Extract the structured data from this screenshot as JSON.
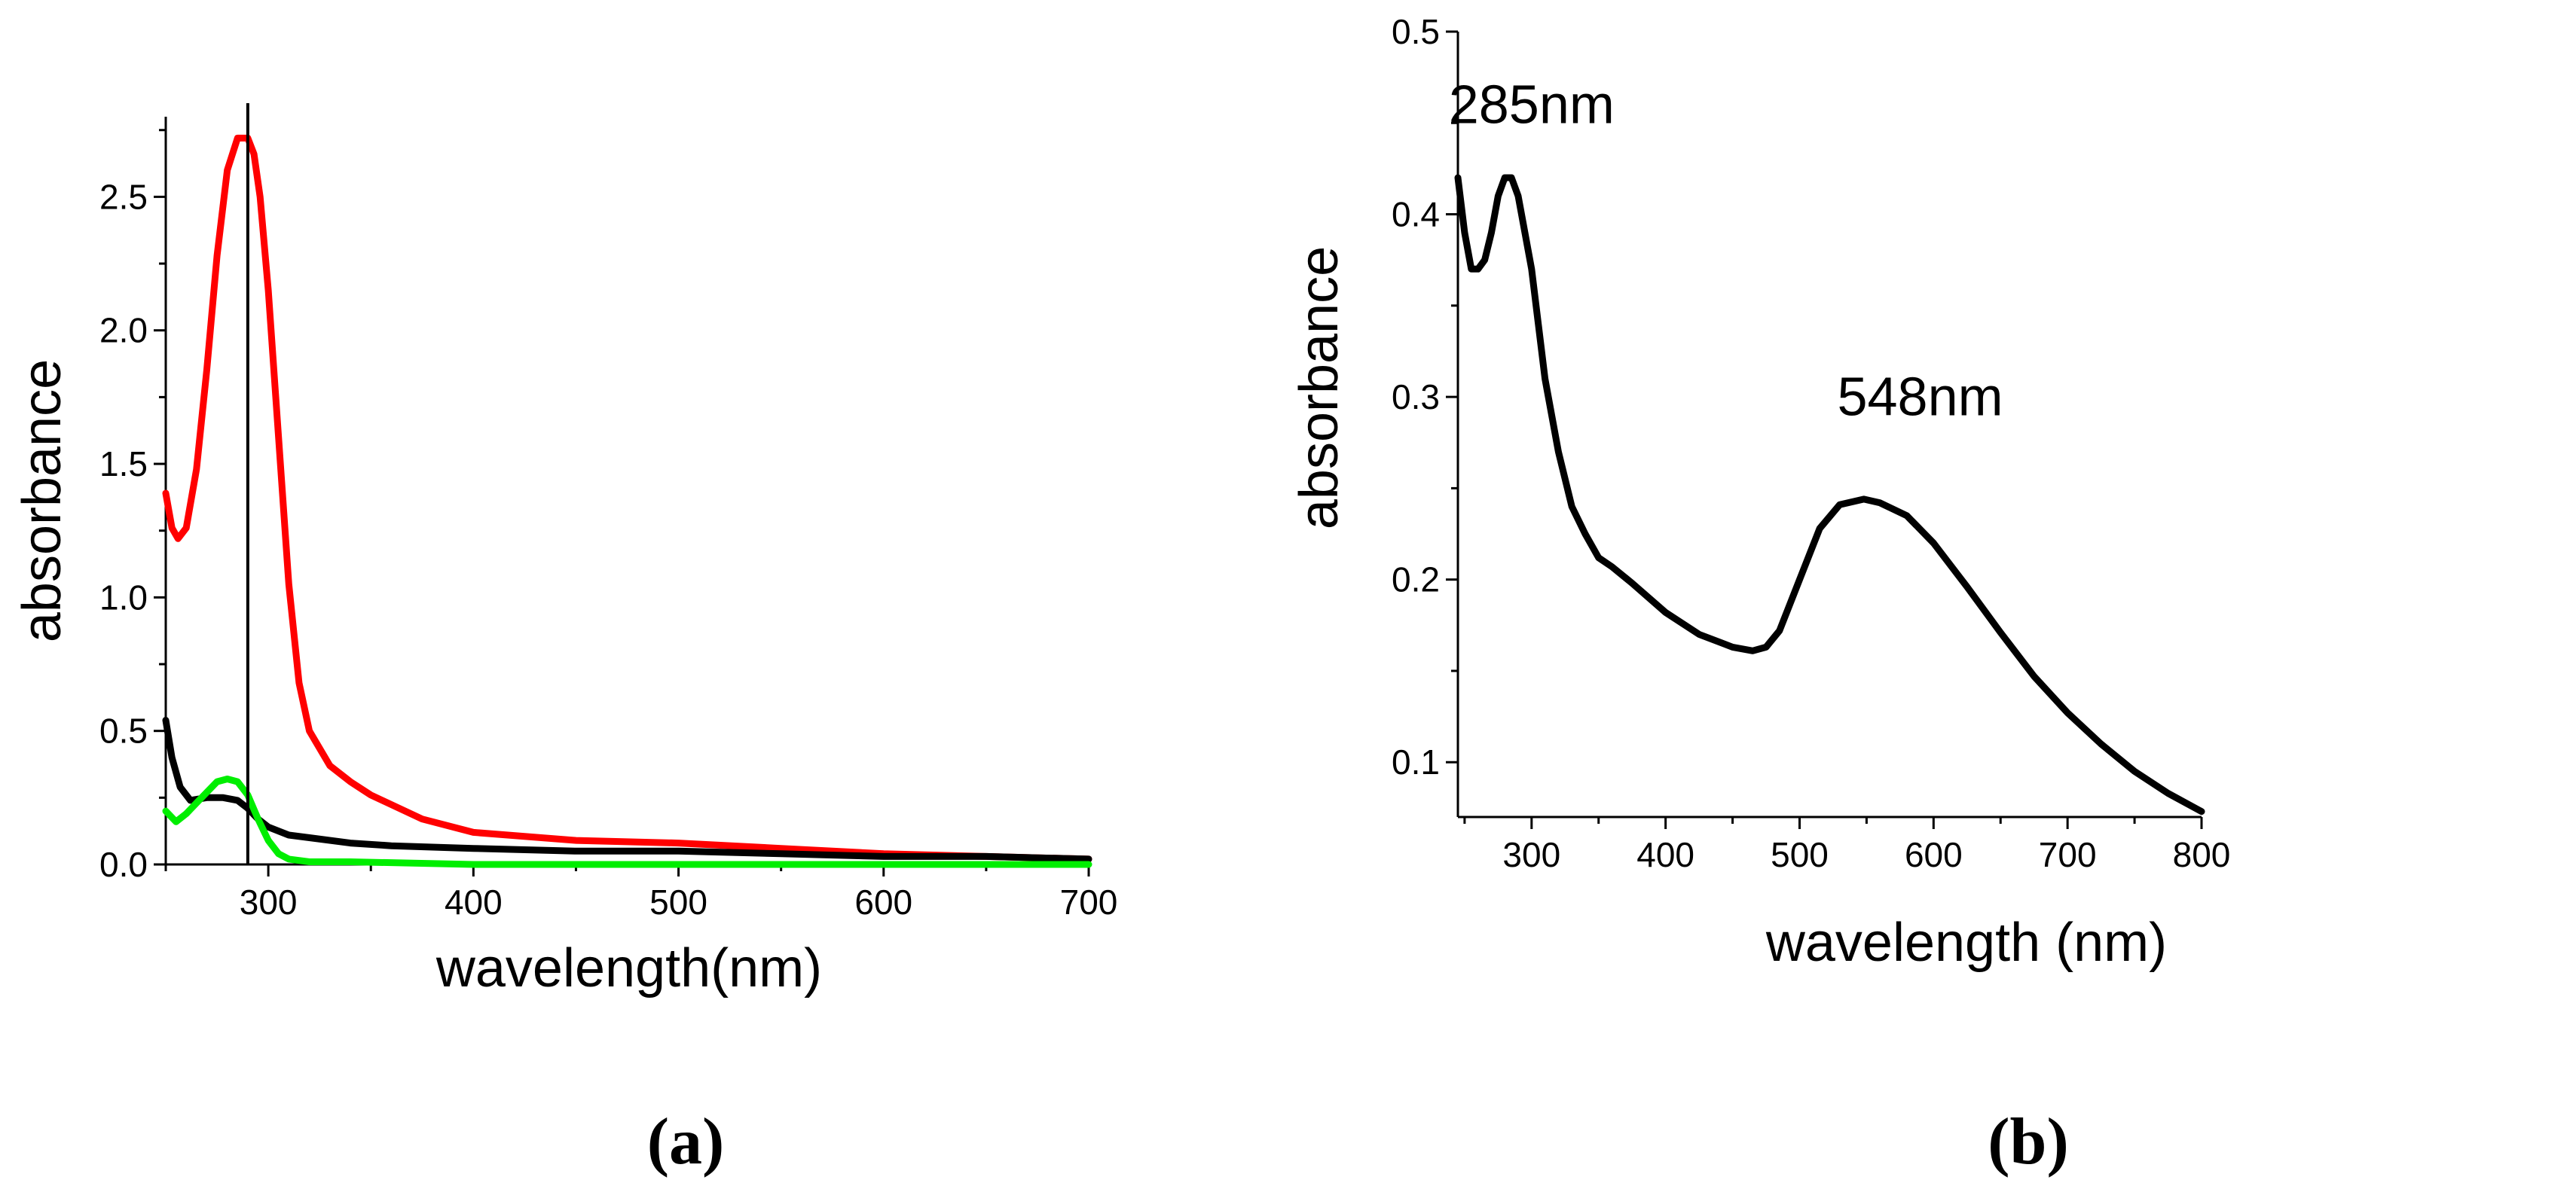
{
  "chart_data": [
    {
      "id": "a",
      "type": "line",
      "panel_label": "(a)",
      "title": "",
      "xlabel": "wavelength(nm)",
      "ylabel": "absorbance",
      "xlim": [
        250,
        700
      ],
      "ylim": [
        0,
        2.8
      ],
      "xticks": [
        300,
        400,
        500,
        600,
        700
      ],
      "xtick_labels": [
        "300",
        "400",
        "500",
        "600",
        "700"
      ],
      "yticks": [
        0.0,
        0.5,
        1.0,
        1.5,
        2.0,
        2.5
      ],
      "ytick_labels": [
        "0.0",
        "0.5",
        "1.0",
        "1.5",
        "2.0",
        "2.5"
      ],
      "vline_x": 290,
      "series": [
        {
          "name": "red",
          "color": "#ff0000",
          "x": [
            250,
            253,
            256,
            260,
            265,
            270,
            275,
            280,
            285,
            290,
            293,
            296,
            300,
            305,
            310,
            315,
            320,
            330,
            340,
            350,
            375,
            400,
            450,
            500,
            550,
            600,
            650,
            700
          ],
          "values": [
            1.39,
            1.26,
            1.22,
            1.26,
            1.48,
            1.85,
            2.28,
            2.6,
            2.72,
            2.72,
            2.66,
            2.5,
            2.15,
            1.6,
            1.05,
            0.68,
            0.5,
            0.37,
            0.31,
            0.26,
            0.17,
            0.12,
            0.09,
            0.08,
            0.06,
            0.04,
            0.03,
            0.02
          ]
        },
        {
          "name": "black",
          "color": "#000000",
          "x": [
            250,
            253,
            257,
            262,
            270,
            278,
            285,
            290,
            295,
            300,
            310,
            320,
            340,
            360,
            400,
            450,
            500,
            550,
            600,
            650,
            700
          ],
          "values": [
            0.54,
            0.4,
            0.29,
            0.24,
            0.25,
            0.25,
            0.24,
            0.21,
            0.17,
            0.14,
            0.11,
            0.1,
            0.08,
            0.07,
            0.06,
            0.05,
            0.05,
            0.04,
            0.03,
            0.03,
            0.02
          ]
        },
        {
          "name": "green",
          "color": "#00ee00",
          "x": [
            250,
            255,
            260,
            265,
            270,
            275,
            280,
            285,
            290,
            295,
            300,
            305,
            310,
            320,
            340,
            400,
            500,
            600,
            700
          ],
          "values": [
            0.2,
            0.16,
            0.19,
            0.23,
            0.27,
            0.31,
            0.32,
            0.31,
            0.26,
            0.17,
            0.09,
            0.04,
            0.02,
            0.01,
            0.01,
            0.0,
            0.0,
            0.0,
            0.0
          ]
        }
      ]
    },
    {
      "id": "b",
      "type": "line",
      "panel_label": "(b)",
      "title": "",
      "xlabel": "wavelength (nm)",
      "ylabel": "absorbance",
      "xlim": [
        245,
        800
      ],
      "ylim": [
        0.07,
        0.5
      ],
      "xticks": [
        300,
        400,
        500,
        600,
        700,
        800
      ],
      "xtick_labels": [
        "300",
        "400",
        "500",
        "600",
        "700",
        "800"
      ],
      "yticks": [
        0.1,
        0.2,
        0.3,
        0.4,
        0.5
      ],
      "ytick_labels": [
        "0.1",
        "0.2",
        "0.3",
        "0.4",
        "0.5"
      ],
      "annotations": [
        {
          "text": "285nm",
          "x": 300,
          "y": 0.45
        },
        {
          "text": "548nm",
          "x": 590,
          "y": 0.29
        }
      ],
      "series": [
        {
          "name": "spectrum",
          "color": "#000000",
          "x": [
            245,
            250,
            255,
            260,
            265,
            270,
            275,
            280,
            285,
            290,
            295,
            300,
            305,
            310,
            315,
            320,
            325,
            330,
            340,
            350,
            360,
            375,
            400,
            425,
            450,
            465,
            475,
            485,
            500,
            515,
            530,
            548,
            560,
            580,
            600,
            625,
            650,
            675,
            700,
            725,
            750,
            775,
            800
          ],
          "values": [
            0.42,
            0.39,
            0.37,
            0.37,
            0.375,
            0.39,
            0.41,
            0.42,
            0.42,
            0.41,
            0.39,
            0.37,
            0.34,
            0.31,
            0.29,
            0.27,
            0.255,
            0.24,
            0.225,
            0.212,
            0.207,
            0.198,
            0.182,
            0.17,
            0.163,
            0.161,
            0.163,
            0.172,
            0.2,
            0.228,
            0.241,
            0.244,
            0.242,
            0.235,
            0.22,
            0.196,
            0.171,
            0.147,
            0.127,
            0.11,
            0.095,
            0.083,
            0.073
          ]
        }
      ]
    }
  ]
}
